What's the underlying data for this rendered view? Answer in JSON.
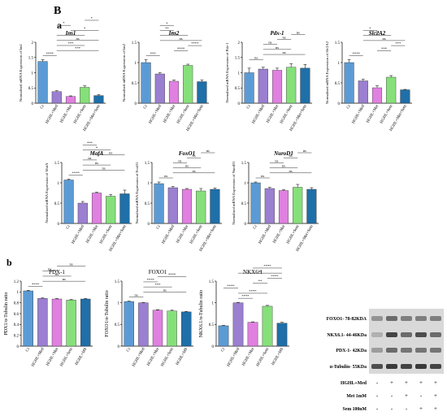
{
  "panel_label": "B",
  "subpanels": [
    {
      "label": "a"
    },
    {
      "label": "b"
    }
  ],
  "colors": {
    "blue": "#5b9bd5",
    "purple": "#9b7fd1",
    "pink": "#e080e0",
    "green": "#86e07a",
    "teal": "#1f6fa8"
  },
  "blot": {
    "bands": [
      {
        "label": "FOXO1- 78-82KDA"
      },
      {
        "label": "NKX6.1- 44-46KDa"
      },
      {
        "label": "PDX-1- 42KDa"
      },
      {
        "label": "α-Tubulin- 55KDa"
      }
    ],
    "conditions": [
      {
        "label": "HGHL+Med",
        "values": [
          "-",
          "+",
          "+",
          "+",
          "+"
        ]
      },
      {
        "label": "Met 1mM",
        "values": [
          "-",
          "-",
          "+",
          "-",
          "+"
        ]
      },
      {
        "label": "Sem 100nM",
        "values": [
          "-",
          "-",
          "-",
          "+",
          "+"
        ]
      }
    ]
  },
  "chart_data": [
    {
      "type": "bar",
      "title": "Ins1",
      "ylabel": "Normalised mRNA Expression of Ins1",
      "categories": [
        "Ct",
        "HGHL+Med",
        "HGHL+Met",
        "HGHL+Sem",
        "HGHL+Met+Sem"
      ],
      "values": [
        1.37,
        0.38,
        0.22,
        0.52,
        0.25
      ],
      "errors": [
        0.06,
        0.03,
        0.02,
        0.05,
        0.03
      ],
      "ylim": [
        0,
        2
      ],
      "sig": [
        {
          "label": "****",
          "a": 0,
          "b": 1
        },
        {
          "label": "***",
          "a": 1,
          "b": 4
        },
        {
          "label": "***",
          "a": 1,
          "b": 3
        },
        {
          "label": "ns",
          "a": 1,
          "b": 4
        },
        {
          "label": "*",
          "a": 1,
          "b": 3
        },
        {
          "label": "*",
          "a": 2,
          "b": 4
        },
        {
          "label": "*",
          "a": 1,
          "b": 2
        },
        {
          "label": "*",
          "a": 3,
          "b": 4
        }
      ]
    },
    {
      "type": "bar",
      "title": "Ins2",
      "ylabel": "Normalised mRNA Expression of Ins2",
      "categories": [
        "Ct",
        "HGHL+Med",
        "HGHL+Met",
        "HGHL+Sem",
        "HGHL+Met+Sem"
      ],
      "values": [
        1.0,
        0.72,
        0.54,
        0.93,
        0.53
      ],
      "errors": [
        0.07,
        0.03,
        0.03,
        0.03,
        0.04
      ],
      "ylim": [
        0,
        1.5
      ],
      "sig": [
        {
          "label": "***",
          "a": 0,
          "b": 1
        },
        {
          "label": "****",
          "a": 2,
          "b": 3
        },
        {
          "label": "****",
          "a": 3,
          "b": 4
        },
        {
          "label": "ns",
          "a": 1,
          "b": 4
        },
        {
          "label": "**",
          "a": 1,
          "b": 3
        },
        {
          "label": "**",
          "a": 1,
          "b": 2
        },
        {
          "label": "*",
          "a": 1,
          "b": 2
        }
      ]
    },
    {
      "type": "bar",
      "title": "Pdx-1",
      "ylabel": "Normalised mRNA Expression of Pdx-1",
      "categories": [
        "Ct",
        "HGHL+Med",
        "HGHL+Met",
        "HGHL+Sem",
        "HGHL+Met+Sem"
      ],
      "values": [
        1.0,
        1.12,
        1.08,
        1.18,
        1.15
      ],
      "errors": [
        0.15,
        0.06,
        0.07,
        0.12,
        0.12
      ],
      "ylim": [
        0,
        2
      ],
      "sig": [
        {
          "label": "ns",
          "a": 0,
          "b": 1
        },
        {
          "label": "ns",
          "a": 1,
          "b": 4
        },
        {
          "label": "ns",
          "a": 1,
          "b": 3
        },
        {
          "label": "ns",
          "a": 1,
          "b": 2
        },
        {
          "label": "ns",
          "a": 2,
          "b": 3
        },
        {
          "label": "ns",
          "a": 3,
          "b": 4
        }
      ]
    },
    {
      "type": "bar",
      "title": "Slc2A2",
      "ylabel": "Normalised mRNA Expression of Slc2A2",
      "categories": [
        "Ct",
        "HGHL+Med",
        "HGHL+Met",
        "HGHL+Sem",
        "HGHL+Met+Sem"
      ],
      "values": [
        1.0,
        0.55,
        0.38,
        0.64,
        0.33
      ],
      "errors": [
        0.07,
        0.04,
        0.05,
        0.04,
        0.01
      ],
      "ylim": [
        0,
        1.5
      ],
      "sig": [
        {
          "label": "****",
          "a": 0,
          "b": 1
        },
        {
          "label": "***",
          "a": 2,
          "b": 3
        },
        {
          "label": "***",
          "a": 3,
          "b": 4
        },
        {
          "label": "ns",
          "a": 1,
          "b": 4
        },
        {
          "label": "**",
          "a": 1,
          "b": 3
        },
        {
          "label": "*",
          "a": 1,
          "b": 2
        }
      ]
    },
    {
      "type": "bar",
      "title": "MafA",
      "ylabel": "Normalised mRNA Expression of MafA",
      "categories": [
        "Ct",
        "HGHL+Med",
        "HGHL+Met",
        "HGHL+Sem",
        "HGHL+Met+Sem"
      ],
      "values": [
        1.07,
        0.5,
        0.75,
        0.67,
        0.73
      ],
      "errors": [
        0.02,
        0.04,
        0.02,
        0.04,
        0.09
      ],
      "ylim": [
        0,
        1.5
      ],
      "sig": [
        {
          "label": "****",
          "a": 0,
          "b": 1
        },
        {
          "label": "ns",
          "a": 1,
          "b": 4
        },
        {
          "label": "ns",
          "a": 1,
          "b": 3
        },
        {
          "label": "ns",
          "a": 1,
          "b": 2
        },
        {
          "label": "ns",
          "a": 2,
          "b": 4
        },
        {
          "label": "*",
          "a": 1,
          "b": 3
        },
        {
          "label": "***",
          "a": 1,
          "b": 2
        }
      ]
    },
    {
      "type": "bar",
      "title": "FoxO1",
      "ylabel": "Normalised mRNA Expression of FoxO1",
      "categories": [
        "Ct",
        "HGHL+Med",
        "HGHL+Met",
        "HGHL+Sem",
        "HGHL+Met+Sem"
      ],
      "values": [
        0.98,
        0.88,
        0.84,
        0.8,
        0.84
      ],
      "errors": [
        0.04,
        0.03,
        0.02,
        0.06,
        0.03
      ],
      "ylim": [
        0,
        1.5
      ],
      "sig": [
        {
          "label": "ns",
          "a": 0,
          "b": 1
        },
        {
          "label": "ns",
          "a": 1,
          "b": 4
        },
        {
          "label": "ns",
          "a": 1,
          "b": 3
        },
        {
          "label": "ns",
          "a": 1,
          "b": 2
        },
        {
          "label": "ns",
          "a": 2,
          "b": 3
        },
        {
          "label": "ns",
          "a": 3,
          "b": 4
        }
      ]
    },
    {
      "type": "bar",
      "title": "NuroD1",
      "ylabel": "Normalised mRNA Expression of NuroD1",
      "categories": [
        "Ct",
        "HGHL+Med",
        "HGHL+Met",
        "HGHL+Sem",
        "HGHL+Met+Sem"
      ],
      "values": [
        1.0,
        0.86,
        0.81,
        0.89,
        0.84
      ],
      "errors": [
        0.02,
        0.03,
        0.02,
        0.07,
        0.04
      ],
      "ylim": [
        0,
        1.5
      ],
      "sig": [
        {
          "label": "ns",
          "a": 0,
          "b": 1
        },
        {
          "label": "ns",
          "a": 1,
          "b": 4
        },
        {
          "label": "ns",
          "a": 1,
          "b": 3
        },
        {
          "label": "ns",
          "a": 1,
          "b": 2
        },
        {
          "label": "ns",
          "a": 2,
          "b": 3
        },
        {
          "label": "ns",
          "a": 3,
          "b": 4
        }
      ]
    },
    {
      "type": "bar",
      "title": "PDX-1",
      "ylabel": "PDX1/α-Tubulin ratio",
      "categories": [
        "Ct",
        "HGHL+Med",
        "HGHL+Met",
        "HGHL+Sem",
        "HGHL+MS"
      ],
      "values": [
        1.02,
        0.88,
        0.87,
        0.85,
        0.87
      ],
      "errors": [
        0.01,
        0.01,
        0.01,
        0.01,
        0.01
      ],
      "ylim": [
        0,
        1.2
      ],
      "sig": [
        {
          "label": "****",
          "a": 0,
          "b": 1
        },
        {
          "label": "ns",
          "a": 1,
          "b": 4
        },
        {
          "label": "ns",
          "a": 1,
          "b": 3
        },
        {
          "label": "ns",
          "a": 1,
          "b": 2
        },
        {
          "label": "ns",
          "a": 2,
          "b": 4
        }
      ]
    },
    {
      "type": "bar",
      "title": "FOXO1",
      "ylabel": "FOXO1/α-Tubulin ratio",
      "categories": [
        "Ct",
        "HGHL+Med",
        "HGHL+Met",
        "HGHL+Sem",
        "HGHL+MS"
      ],
      "values": [
        1.03,
        1.0,
        0.83,
        0.81,
        0.79
      ],
      "errors": [
        0.01,
        0.01,
        0.01,
        0.02,
        0.01
      ],
      "ylim": [
        0,
        1.5
      ],
      "sig": [
        {
          "label": "ns",
          "a": 0,
          "b": 1
        },
        {
          "label": "ns",
          "a": 1,
          "b": 4
        },
        {
          "label": "***",
          "a": 1,
          "b": 3
        },
        {
          "label": "****",
          "a": 1,
          "b": 2
        },
        {
          "label": "****",
          "a": 2,
          "b": 4
        }
      ]
    },
    {
      "type": "bar",
      "title": "NKX6.1",
      "ylabel": "NKX6.1/α-Tubulin ratio",
      "categories": [
        "Ct",
        "HGHL+Med",
        "HGHL+Met",
        "HGHL+Sem",
        "HGHL+MS"
      ],
      "values": [
        0.47,
        1.0,
        0.55,
        0.92,
        0.53
      ],
      "errors": [
        0.01,
        0.01,
        0.01,
        0.02,
        0.02
      ],
      "ylim": [
        0,
        1.5
      ],
      "sig": [
        {
          "label": "****",
          "a": 1,
          "b": 2
        },
        {
          "label": "****",
          "a": 1,
          "b": 3
        },
        {
          "label": "****",
          "a": 0,
          "b": 1
        },
        {
          "label": "**",
          "a": 2,
          "b": 3
        },
        {
          "label": "****",
          "a": 3,
          "b": 4
        },
        {
          "label": "ns",
          "a": 1,
          "b": 4
        },
        {
          "label": "****",
          "a": 2,
          "b": 4
        }
      ]
    }
  ]
}
